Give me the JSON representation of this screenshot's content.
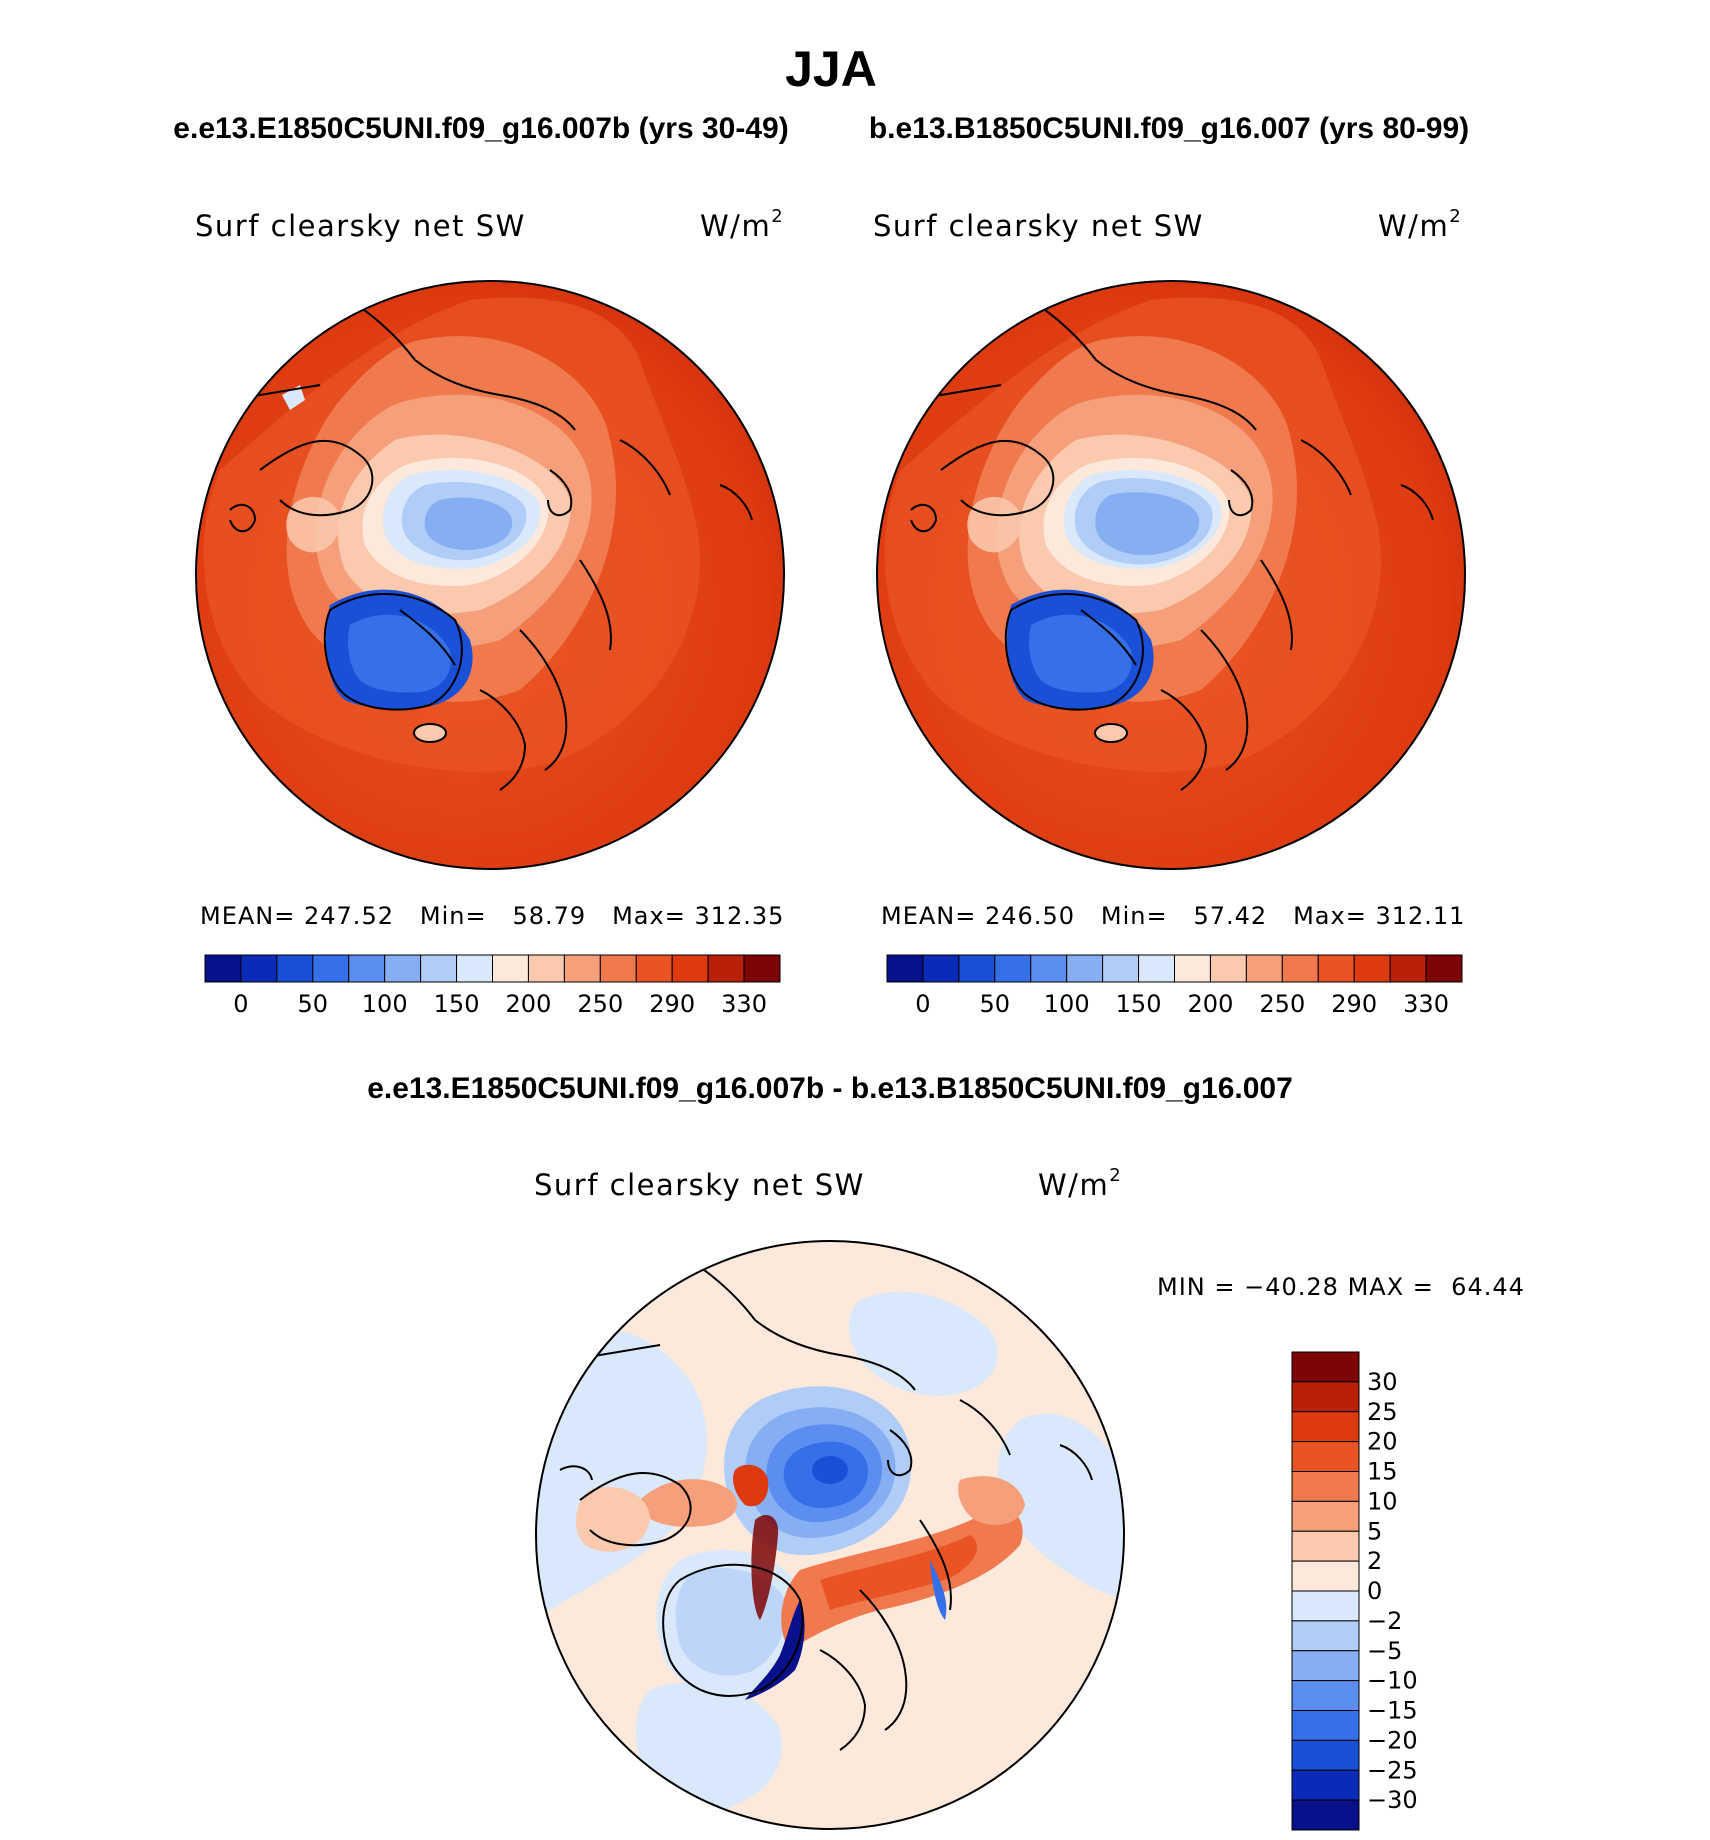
{
  "figure": {
    "title": "JJA",
    "subtitle_left": "e.e13.E1850C5UNI.f09_g16.007b (yrs 30-49)",
    "subtitle_right": "b.e13.B1850C5UNI.f09_g16.007 (yrs 80-99)",
    "diff_title": "e.e13.E1850C5UNI.f09_g16.007b - b.e13.B1850C5UNI.f09_g16.007"
  },
  "colors": {
    "abs": [
      "#08108c",
      "#0a2ab8",
      "#1a4fd8",
      "#3570e8",
      "#5b8ef0",
      "#86aef2",
      "#b0cdf8",
      "#d9e8fb",
      "#fde9dc",
      "#fbc9ae",
      "#f5a07a",
      "#f07a4e",
      "#ea5424",
      "#dd3a10",
      "#b82008",
      "#7e0505"
    ],
    "diff": [
      "#08108c",
      "#0a2ab8",
      "#1a4fd8",
      "#3570e8",
      "#5b8ef0",
      "#86aef2",
      "#b0cdf8",
      "#d9e8fb",
      "#fde9dc",
      "#fbc9ae",
      "#f5a07a",
      "#f07a4e",
      "#ea5424",
      "#dd3a10",
      "#b82008",
      "#7e0505"
    ]
  },
  "chart_data": [
    {
      "type": "heatmap",
      "projection": "north polar stereographic",
      "title_left": "Surf clearsky net SW",
      "units": "W/m",
      "units_exp": "2",
      "stats": {
        "mean_label": "MEAN=",
        "mean": "247.52",
        "min_label": "Min=",
        "min": "58.79",
        "max_label": "Max=",
        "max": "312.35"
      },
      "colorbar": {
        "orientation": "horizontal",
        "levels": [
          0,
          25,
          50,
          75,
          100,
          125,
          150,
          175,
          200,
          225,
          250,
          270,
          290,
          310,
          330
        ],
        "tick_labels": [
          "0",
          "50",
          "100",
          "150",
          "200",
          "250",
          "290",
          "330"
        ]
      }
    },
    {
      "type": "heatmap",
      "projection": "north polar stereographic",
      "title_left": "Surf clearsky net SW",
      "units": "W/m",
      "units_exp": "2",
      "stats": {
        "mean_label": "MEAN=",
        "mean": "246.50",
        "min_label": "Min=",
        "min": "57.42",
        "max_label": "Max=",
        "max": "312.11"
      },
      "colorbar": {
        "orientation": "horizontal",
        "levels": [
          0,
          25,
          50,
          75,
          100,
          125,
          150,
          175,
          200,
          225,
          250,
          270,
          290,
          310,
          330
        ],
        "tick_labels": [
          "0",
          "50",
          "100",
          "150",
          "200",
          "250",
          "290",
          "330"
        ]
      }
    },
    {
      "type": "heatmap",
      "projection": "north polar stereographic",
      "title_left": "Surf clearsky net SW",
      "units": "W/m",
      "units_exp": "2",
      "stats": {
        "min_label": "MIN =",
        "min": "−40.28",
        "max_label": "MAX =",
        "max": "64.44"
      },
      "colorbar": {
        "orientation": "vertical",
        "tick_labels": [
          "30",
          "25",
          "20",
          "15",
          "10",
          "5",
          "2",
          "0",
          "−2",
          "−5",
          "−10",
          "−15",
          "−20",
          "−25",
          "−30"
        ]
      }
    }
  ]
}
